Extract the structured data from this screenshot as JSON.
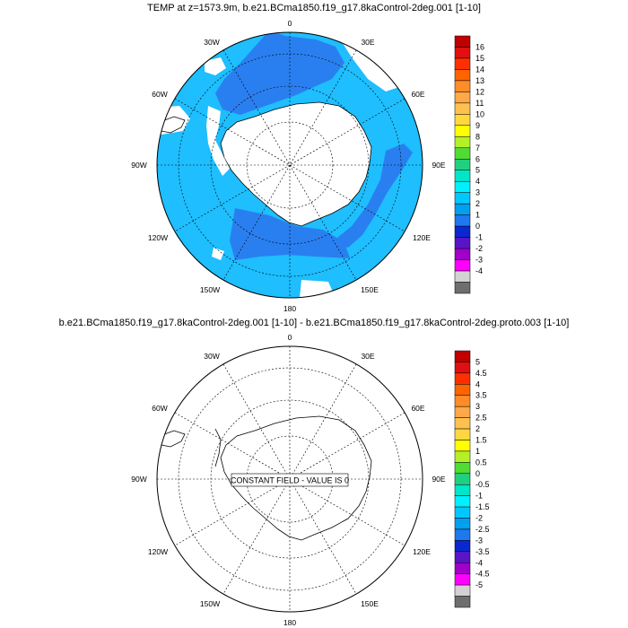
{
  "panel1": {
    "title": "TEMP at z=1573.9m, b.e21.BCma1850.f19_g17.8kaControl-2deg.001 [1-10]",
    "lon_labels": {
      "0": "0",
      "30e": "30E",
      "60e": "60E",
      "90e": "90E",
      "120e": "120E",
      "150e": "150E",
      "180": "180",
      "150w": "150W",
      "120w": "120W",
      "90w": "90W",
      "60w": "60W",
      "30w": "30W"
    },
    "colorbar_labels": [
      "16",
      "15",
      "14",
      "13",
      "12",
      "11",
      "10",
      "9",
      "8",
      "7",
      "6",
      "5",
      "4",
      "3",
      "2",
      "1",
      "0",
      "-1",
      "-2",
      "-3",
      "-4"
    ],
    "colorbar_colors": [
      "#c00000",
      "#e01010",
      "#ff3000",
      "#ff6400",
      "#ff8c28",
      "#ffa846",
      "#ffc050",
      "#ffd840",
      "#ffff00",
      "#b4f028",
      "#50dc32",
      "#20d080",
      "#00e6c8",
      "#00f0ff",
      "#00c8ff",
      "#00a0f0",
      "#1e78f0",
      "#0a28d2",
      "#5a14c8",
      "#a000c8",
      "#ff00ff",
      "#d2d2d2",
      "#6e6e6e"
    ],
    "map_colors": {
      "ocean": "#1ebeff",
      "warm_region": "#2a7ff0",
      "missing": "#ffffff"
    }
  },
  "panel2": {
    "title": "b.e21.BCma1850.f19_g17.8kaControl-2deg.001 [1-10] - b.e21.BCma1850.f19_g17.8kaControl-2deg.proto.003 [1-10]",
    "lon_labels": {
      "0": "0",
      "30e": "30E",
      "60e": "60E",
      "90e": "90E",
      "120e": "120E",
      "150e": "150E",
      "180": "180",
      "150w": "150W",
      "120w": "120W",
      "90w": "90W",
      "60w": "60W",
      "30w": "30W"
    },
    "constant_field_text": "CONSTANT FIELD - VALUE IS 0",
    "colorbar_labels": [
      "5",
      "4.5",
      "4",
      "3.5",
      "3",
      "2.5",
      "2",
      "1.5",
      "1",
      "0.5",
      "0",
      "-0.5",
      "-1",
      "-1.5",
      "-2",
      "-2.5",
      "-3",
      "-3.5",
      "-4",
      "-4.5",
      "-5"
    ],
    "colorbar_colors": [
      "#c00000",
      "#e01010",
      "#ff3000",
      "#ff6400",
      "#ff8c28",
      "#ffa846",
      "#ffc050",
      "#ffd840",
      "#ffff00",
      "#b4f028",
      "#50dc32",
      "#20d080",
      "#00e6c8",
      "#00f0ff",
      "#00c8ff",
      "#00a0f0",
      "#1e78f0",
      "#0a28d2",
      "#5a14c8",
      "#a000c8",
      "#ff00ff",
      "#d2d2d2",
      "#6e6e6e"
    ]
  }
}
